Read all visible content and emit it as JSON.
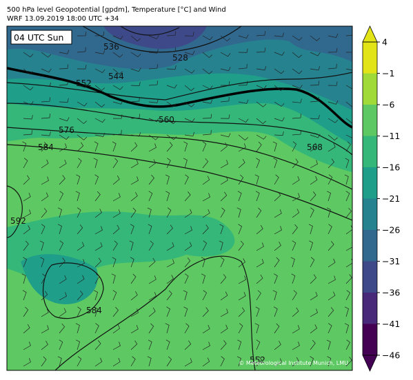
{
  "header": {
    "title": "500 hPa level Geopotential [gpdm], Temperature [°C] and Wind",
    "subtitle": "WRF 13.09.2019 18:00 UTC +34"
  },
  "map": {
    "time_label": "04 UTC Sun",
    "contour_labels": [
      "536",
      "528",
      "552",
      "544",
      "560",
      "576",
      "584",
      "568",
      "592",
      "584",
      "552"
    ],
    "credit": "© Meteorological Institute Munich, LMU"
  },
  "colorbar": {
    "levels": [
      {
        "value": -46,
        "label": "−46"
      },
      {
        "value": -41,
        "label": "−41"
      },
      {
        "value": -36,
        "label": "−36"
      },
      {
        "value": -31,
        "label": "−31"
      },
      {
        "value": -26,
        "label": "−26"
      },
      {
        "value": -21,
        "label": "−21"
      },
      {
        "value": -16,
        "label": "−16"
      },
      {
        "value": -11,
        "label": "−11"
      },
      {
        "value": -6,
        "label": "−6"
      },
      {
        "value": -1,
        "label": "−1"
      },
      4
    ],
    "colors": [
      "#440154",
      "#482878",
      "#3e4989",
      "#31688e",
      "#26828e",
      "#1f9e89",
      "#35b779",
      "#5ec962",
      "#a0da39",
      "#e2e418"
    ]
  }
}
